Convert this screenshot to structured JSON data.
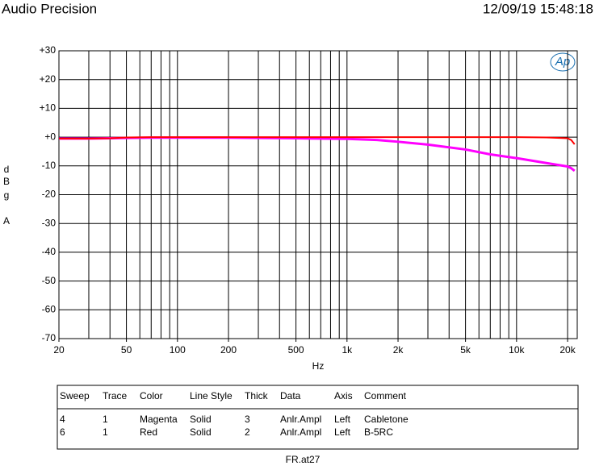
{
  "header": {
    "brand": "Audio Precision",
    "timestamp": "12/09/19 15:48:18"
  },
  "chart_data": {
    "type": "line",
    "logo": "Ap",
    "xlabel": "Hz",
    "ylabel": [
      "d",
      "B",
      "g",
      "A"
    ],
    "xscale": "log",
    "grid": true,
    "xlim": [
      20,
      22800
    ],
    "ylim": [
      -70,
      30
    ],
    "xticks": [
      20,
      50,
      100,
      200,
      500,
      {
        "value": 1000,
        "label": "1k"
      },
      {
        "value": 2000,
        "label": "2k"
      },
      {
        "value": 5000,
        "label": "5k"
      },
      {
        "value": 10000,
        "label": "10k"
      },
      {
        "value": 20000,
        "label": "20k"
      }
    ],
    "x_grid_lines": [
      20,
      30,
      40,
      50,
      60,
      70,
      80,
      90,
      100,
      200,
      300,
      400,
      500,
      600,
      700,
      800,
      900,
      1000,
      2000,
      3000,
      4000,
      5000,
      6000,
      7000,
      8000,
      9000,
      10000,
      20000
    ],
    "yticks": [
      {
        "value": 30,
        "label": "+30"
      },
      {
        "value": 20,
        "label": "+20"
      },
      {
        "value": 10,
        "label": "+10"
      },
      {
        "value": 0,
        "label": "+0"
      },
      -10,
      -20,
      -30,
      -40,
      -50,
      -60,
      -70
    ],
    "x": [
      20,
      30,
      40,
      50,
      70,
      100,
      200,
      500,
      1000,
      1500,
      2000,
      3000,
      5000,
      7000,
      10000,
      15000,
      20000,
      21000,
      22000
    ],
    "series": [
      {
        "name": "Cabletone",
        "color": "#ff00ff",
        "width": 3,
        "values": [
          -0.5,
          -0.5,
          -0.4,
          -0.3,
          -0.2,
          -0.2,
          -0.2,
          -0.4,
          -0.6,
          -1.0,
          -1.6,
          -2.6,
          -4.3,
          -6.0,
          -7.3,
          -9.0,
          -10.2,
          -10.8,
          -11.7
        ]
      },
      {
        "name": "B-5RC",
        "color": "#ff0000",
        "width": 2,
        "values": [
          -0.5,
          -0.5,
          -0.4,
          -0.1,
          0,
          0,
          0,
          0,
          0,
          0,
          0,
          0,
          0,
          0,
          0,
          -0.1,
          -0.4,
          -1.0,
          -2.5
        ]
      }
    ]
  },
  "legend_table": {
    "headers": [
      "Sweep",
      "Trace",
      "Color",
      "Line Style",
      "Thick",
      "Data",
      "Axis",
      "Comment"
    ],
    "rows": [
      [
        "4",
        "1",
        "Magenta",
        "Solid",
        "3",
        "Anlr.Ampl",
        "Left"
      ],
      [
        "6",
        "1",
        "Red",
        "Solid",
        "2",
        "Anlr.Ampl",
        "Left"
      ]
    ]
  },
  "footer": "FR.at27"
}
